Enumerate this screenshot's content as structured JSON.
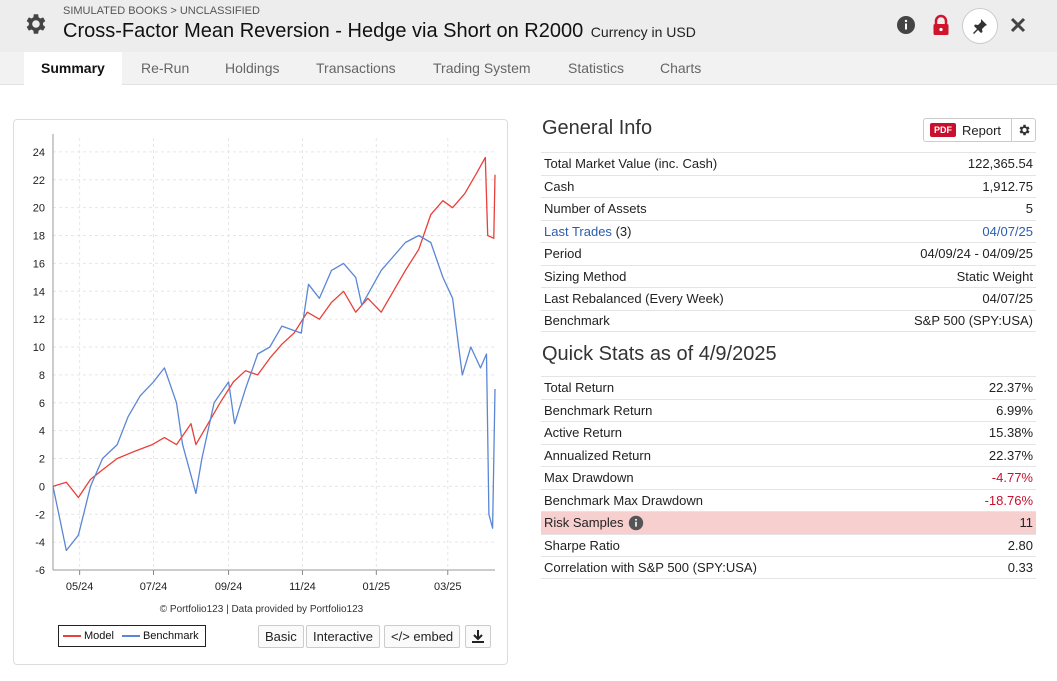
{
  "header": {
    "breadcrumb": "SIMULATED BOOKS > UNCLASSIFIED",
    "title": "Cross-Factor Mean Reversion - Hedge via Short on R2000",
    "currency": "Currency in USD"
  },
  "tabs": [
    "Summary",
    "Re-Run",
    "Holdings",
    "Transactions",
    "Trading System",
    "Statistics",
    "Charts"
  ],
  "chart_data": {
    "type": "line",
    "title": "",
    "xlabel": "",
    "ylabel": "",
    "x_ticks": [
      "05/24",
      "07/24",
      "09/24",
      "11/24",
      "01/25",
      "03/25"
    ],
    "y_ticks": [
      24,
      22,
      20,
      18,
      16,
      14,
      12,
      10,
      8,
      6,
      4,
      2,
      0,
      -2,
      -4,
      -6
    ],
    "ylim": [
      -6,
      25
    ],
    "xlim": [
      "2024-04-09",
      "2025-04-09"
    ],
    "grid": true,
    "legend": "bottom-left",
    "series": [
      {
        "name": "Model",
        "color": "#e8403a",
        "points": [
          [
            "2024-04-09",
            0
          ],
          [
            "2024-04-20",
            0.3
          ],
          [
            "2024-04-30",
            -0.8
          ],
          [
            "2024-05-10",
            0.5
          ],
          [
            "2024-05-20",
            1.2
          ],
          [
            "2024-06-01",
            2.0
          ],
          [
            "2024-06-15",
            2.5
          ],
          [
            "2024-06-30",
            3.0
          ],
          [
            "2024-07-10",
            3.5
          ],
          [
            "2024-07-20",
            3.0
          ],
          [
            "2024-08-01",
            4.5
          ],
          [
            "2024-08-05",
            3.0
          ],
          [
            "2024-08-15",
            4.5
          ],
          [
            "2024-08-25",
            6.0
          ],
          [
            "2024-09-05",
            7.5
          ],
          [
            "2024-09-15",
            8.3
          ],
          [
            "2024-09-25",
            8.0
          ],
          [
            "2024-10-05",
            9.2
          ],
          [
            "2024-10-15",
            10.2
          ],
          [
            "2024-10-25",
            11.0
          ],
          [
            "2024-11-05",
            12.5
          ],
          [
            "2024-11-15",
            12.0
          ],
          [
            "2024-11-25",
            13.2
          ],
          [
            "2024-12-05",
            14.0
          ],
          [
            "2024-12-15",
            12.5
          ],
          [
            "2024-12-25",
            13.5
          ],
          [
            "2025-01-05",
            12.5
          ],
          [
            "2025-01-15",
            14.0
          ],
          [
            "2025-01-25",
            15.5
          ],
          [
            "2025-02-05",
            17.0
          ],
          [
            "2025-02-15",
            19.5
          ],
          [
            "2025-02-25",
            20.5
          ],
          [
            "2025-03-05",
            20.0
          ],
          [
            "2025-03-15",
            21.0
          ],
          [
            "2025-03-25",
            22.5
          ],
          [
            "2025-04-01",
            23.6
          ],
          [
            "2025-04-03",
            18.0
          ],
          [
            "2025-04-08",
            17.8
          ],
          [
            "2025-04-09",
            22.37
          ]
        ]
      },
      {
        "name": "Benchmark",
        "color": "#5b86d6",
        "points": [
          [
            "2024-04-09",
            0
          ],
          [
            "2024-04-15",
            -2.5
          ],
          [
            "2024-04-20",
            -4.6
          ],
          [
            "2024-04-30",
            -3.5
          ],
          [
            "2024-05-10",
            0
          ],
          [
            "2024-05-20",
            2.0
          ],
          [
            "2024-06-01",
            3.0
          ],
          [
            "2024-06-10",
            5.0
          ],
          [
            "2024-06-20",
            6.5
          ],
          [
            "2024-07-01",
            7.5
          ],
          [
            "2024-07-10",
            8.5
          ],
          [
            "2024-07-20",
            6.0
          ],
          [
            "2024-07-25",
            3.0
          ],
          [
            "2024-08-05",
            -0.5
          ],
          [
            "2024-08-10",
            2.0
          ],
          [
            "2024-08-20",
            6.0
          ],
          [
            "2024-09-01",
            7.5
          ],
          [
            "2024-09-06",
            4.5
          ],
          [
            "2024-09-15",
            7.0
          ],
          [
            "2024-09-25",
            9.5
          ],
          [
            "2024-10-05",
            10.0
          ],
          [
            "2024-10-15",
            11.5
          ],
          [
            "2024-10-31",
            11.0
          ],
          [
            "2024-11-06",
            14.5
          ],
          [
            "2024-11-15",
            13.5
          ],
          [
            "2024-11-25",
            15.5
          ],
          [
            "2024-12-05",
            16.0
          ],
          [
            "2024-12-15",
            15.0
          ],
          [
            "2024-12-20",
            13.0
          ],
          [
            "2025-01-05",
            15.5
          ],
          [
            "2025-01-15",
            16.5
          ],
          [
            "2025-01-25",
            17.5
          ],
          [
            "2025-02-05",
            18.0
          ],
          [
            "2025-02-15",
            17.5
          ],
          [
            "2025-02-25",
            15.0
          ],
          [
            "2025-03-05",
            13.5
          ],
          [
            "2025-03-10",
            10.0
          ],
          [
            "2025-03-13",
            8.0
          ],
          [
            "2025-03-20",
            10.0
          ],
          [
            "2025-03-28",
            8.5
          ],
          [
            "2025-04-02",
            9.5
          ],
          [
            "2025-04-04",
            -2.0
          ],
          [
            "2025-04-07",
            -3.0
          ],
          [
            "2025-04-09",
            6.99
          ]
        ]
      }
    ]
  },
  "chart": {
    "credit": "© Portfolio123 | Data provided by Portfolio123",
    "legend_model": "Model",
    "legend_benchmark": "Benchmark",
    "buttons": {
      "basic": "Basic",
      "interactive": "Interactive",
      "embed": "</> embed"
    }
  },
  "general_info": {
    "title": "General Info",
    "report_label": "Report",
    "pdf_label": "PDF",
    "rows": {
      "total_market_value": {
        "label": "Total Market Value (inc. Cash)",
        "value": "122,365.54"
      },
      "cash": {
        "label": "Cash",
        "value": "1,912.75"
      },
      "num_assets": {
        "label": "Number of Assets",
        "value": "5"
      },
      "last_trades": {
        "label": "Last Trades",
        "count": "(3)",
        "value": "04/07/25"
      },
      "period": {
        "label": "Period",
        "value": "04/09/24 - 04/09/25"
      },
      "sizing": {
        "label": "Sizing Method",
        "value": "Static Weight"
      },
      "last_rebalanced": {
        "label": "Last Rebalanced (Every Week)",
        "value": "04/07/25"
      },
      "benchmark": {
        "label": "Benchmark",
        "value": "S&P 500 (SPY:USA)"
      }
    }
  },
  "quick_stats": {
    "title": "Quick Stats as of 4/9/2025",
    "rows": {
      "total_return": {
        "label": "Total Return",
        "value": "22.37%"
      },
      "benchmark_return": {
        "label": "Benchmark Return",
        "value": "6.99%"
      },
      "active_return": {
        "label": "Active Return",
        "value": "15.38%"
      },
      "annualized_return": {
        "label": "Annualized Return",
        "value": "22.37%"
      },
      "max_drawdown": {
        "label": "Max Drawdown",
        "value": "-4.77%"
      },
      "bench_max_drawdown": {
        "label": "Benchmark Max Drawdown",
        "value": "-18.76%"
      },
      "risk_samples": {
        "label": "Risk Samples",
        "value": "11"
      },
      "sharpe": {
        "label": "Sharpe Ratio",
        "value": "2.80"
      },
      "correlation": {
        "label": "Correlation with S&P 500 (SPY:USA)",
        "value": "0.33"
      }
    }
  },
  "colors": {
    "negative": "#c8102e",
    "link": "#2a5db0",
    "highlight": "#f7cfcf"
  }
}
